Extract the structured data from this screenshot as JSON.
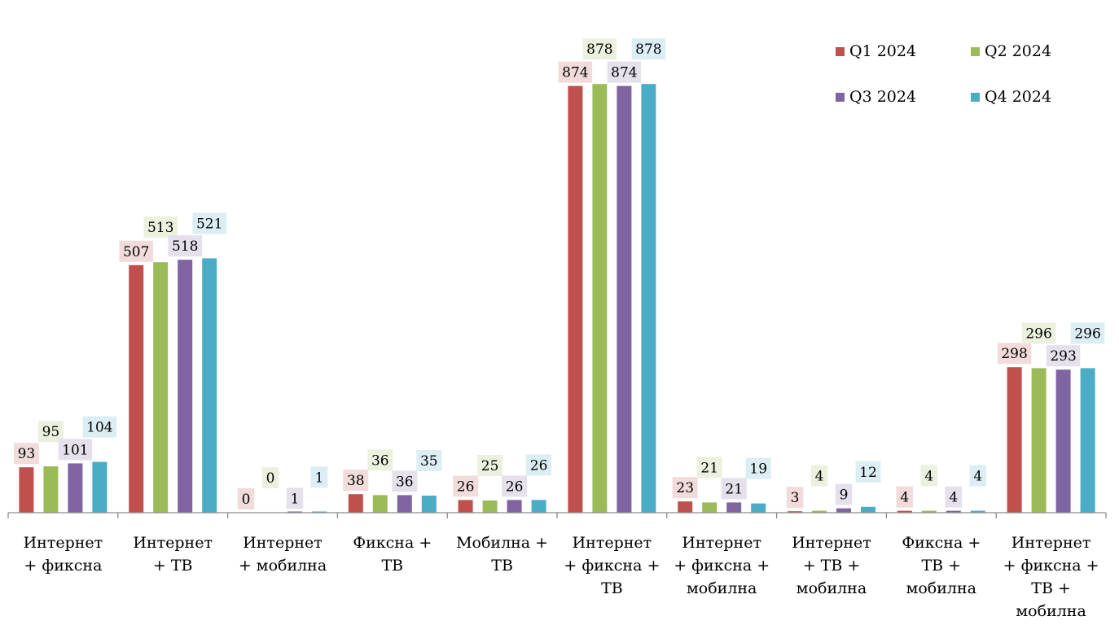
{
  "chart_data": {
    "type": "bar",
    "title": "",
    "xlabel": "",
    "ylabel": "",
    "ylim": [
      0,
      1000
    ],
    "grid": false,
    "legend_position": "top-right",
    "categories": [
      [
        "Интернет",
        "+ фиксна"
      ],
      [
        "Интернет",
        "+ ТВ"
      ],
      [
        "Интернет",
        "+ мобилна"
      ],
      [
        "Фиксна +",
        "ТВ"
      ],
      [
        "Мобилна +",
        "ТВ"
      ],
      [
        "Интернет",
        "+ фиксна +",
        "ТВ"
      ],
      [
        "Интернет",
        "+ фиксна +",
        "мобилна"
      ],
      [
        "Интернет",
        "+ ТВ +",
        "мобилна"
      ],
      [
        "Фиксна +",
        "ТВ +",
        "мобилна"
      ],
      [
        "Интернет",
        "+ фиксна +",
        "ТВ +",
        "мобилна"
      ]
    ],
    "series": [
      {
        "name": "Q1 2024",
        "color": "#c0504d",
        "label_bg": "#f2dcdb",
        "values": [
          93,
          507,
          0,
          38,
          26,
          874,
          23,
          3,
          4,
          298
        ]
      },
      {
        "name": "Q2 2024",
        "color": "#9bbb59",
        "label_bg": "#ebf1de",
        "values": [
          95,
          513,
          0,
          36,
          25,
          878,
          21,
          4,
          4,
          296
        ]
      },
      {
        "name": "Q3 2024",
        "color": "#8064a2",
        "label_bg": "#e5e0ec",
        "values": [
          101,
          518,
          1,
          36,
          26,
          874,
          21,
          9,
          4,
          293
        ]
      },
      {
        "name": "Q4 2024",
        "color": "#4bacc6",
        "label_bg": "#dbeef4",
        "values": [
          104,
          521,
          1,
          35,
          26,
          878,
          19,
          12,
          4,
          296
        ]
      }
    ]
  }
}
